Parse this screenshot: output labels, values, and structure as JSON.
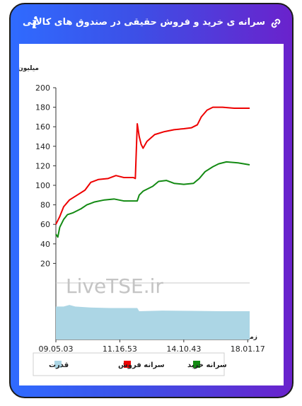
{
  "header": {
    "title": "سرانه ی خرید و فروش حقیقی در صندوق های کالایی",
    "info_icon": "i",
    "link_icon": "link-icon"
  },
  "watermark": "LiveTSE.ir",
  "chart_data": {
    "type": "line",
    "ylabel": "میلیون تومان",
    "xlabel": "زمان",
    "ylim": [
      0,
      200
    ],
    "y_ticks": [
      "20",
      "40",
      "60",
      "80",
      "100",
      "120",
      "140",
      "160",
      "180",
      "200"
    ],
    "x_ticks": [
      "09.05.03",
      "11.16.53",
      "14.10.43",
      "18.01.17"
    ],
    "x_range": [
      0,
      100
    ],
    "x_tick_positions": [
      0,
      33,
      66,
      99
    ],
    "legend_position": "bottom",
    "series": [
      {
        "name": "سرانه فروش",
        "color": "#ee0000",
        "points": [
          [
            0,
            60
          ],
          [
            2,
            68
          ],
          [
            4,
            78
          ],
          [
            7,
            85
          ],
          [
            11,
            90
          ],
          [
            15,
            95
          ],
          [
            18,
            103
          ],
          [
            22,
            106
          ],
          [
            27,
            107
          ],
          [
            31,
            110
          ],
          [
            35,
            108
          ],
          [
            40,
            108
          ],
          [
            41,
            107
          ],
          [
            42,
            163
          ],
          [
            43,
            150
          ],
          [
            44,
            142
          ],
          [
            45,
            138
          ],
          [
            47,
            145
          ],
          [
            51,
            152
          ],
          [
            56,
            155
          ],
          [
            61,
            157
          ],
          [
            66,
            158
          ],
          [
            70,
            159
          ],
          [
            73,
            162
          ],
          [
            75,
            170
          ],
          [
            78,
            177
          ],
          [
            81,
            180
          ],
          [
            86,
            180
          ],
          [
            92,
            179
          ],
          [
            100,
            179
          ]
        ]
      },
      {
        "name": "سرانه خرید",
        "color": "#138a13",
        "points": [
          [
            0,
            50
          ],
          [
            1,
            47
          ],
          [
            2,
            57
          ],
          [
            4,
            65
          ],
          [
            6,
            70
          ],
          [
            9,
            72
          ],
          [
            13,
            76
          ],
          [
            16,
            80
          ],
          [
            20,
            83
          ],
          [
            25,
            85
          ],
          [
            30,
            86
          ],
          [
            35,
            84
          ],
          [
            40,
            84
          ],
          [
            42,
            84
          ],
          [
            43,
            90
          ],
          [
            45,
            94
          ],
          [
            50,
            99
          ],
          [
            53,
            104
          ],
          [
            57,
            105
          ],
          [
            61,
            102
          ],
          [
            66,
            101
          ],
          [
            71,
            102
          ],
          [
            74,
            107
          ],
          [
            77,
            114
          ],
          [
            81,
            119
          ],
          [
            84,
            122
          ],
          [
            88,
            124
          ],
          [
            94,
            123
          ],
          [
            100,
            121
          ]
        ]
      },
      {
        "name": "قدرت",
        "color": "#acd6e5",
        "points": [
          [
            0,
            10.5
          ],
          [
            4,
            10.5
          ],
          [
            7,
            11
          ],
          [
            10,
            10.5
          ],
          [
            17,
            10.2
          ],
          [
            28,
            10
          ],
          [
            42,
            10
          ],
          [
            43,
            9
          ],
          [
            55,
            9.2
          ],
          [
            70,
            9.1
          ],
          [
            85,
            9
          ],
          [
            100,
            9
          ]
        ]
      }
    ]
  }
}
